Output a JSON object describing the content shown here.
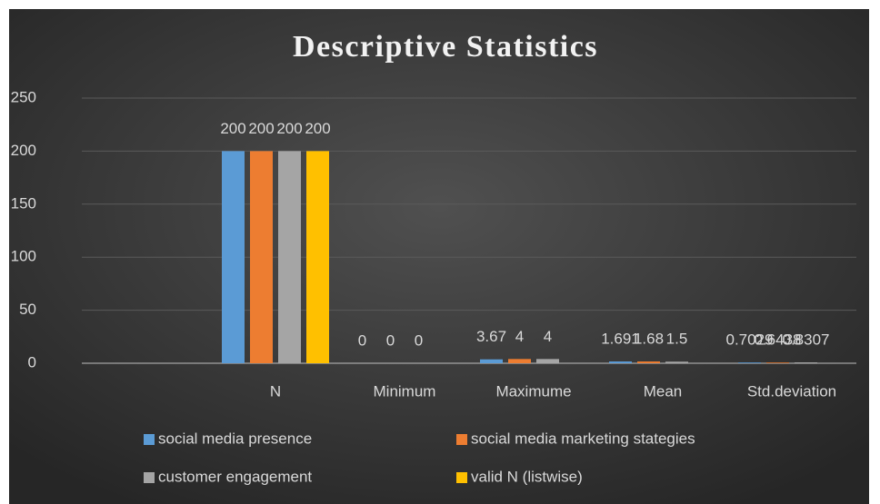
{
  "chart_data": {
    "type": "bar",
    "title": "Descriptive Statistics",
    "categories": [
      null,
      "N",
      "Minimum",
      "Maximume",
      "Mean",
      "Std.deviation"
    ],
    "series": [
      {
        "name": "social media presence",
        "color": "#5b9bd5",
        "values": [
          null,
          200,
          0,
          3.67,
          1.691,
          0.7029
        ]
      },
      {
        "name": "social media marketing stategies",
        "color": "#ed7d31",
        "values": [
          null,
          200,
          0,
          4,
          1.68,
          0.6438
        ]
      },
      {
        "name": "customer engagement",
        "color": "#a5a5a5",
        "values": [
          null,
          200,
          0,
          4,
          1.5,
          0.8307
        ]
      },
      {
        "name": "valid N (listwise)",
        "color": "#ffc000",
        "values": [
          null,
          200,
          null,
          null,
          null,
          null
        ]
      }
    ],
    "ylim": [
      0,
      250
    ],
    "yticks": [
      0,
      50,
      100,
      150,
      200,
      250
    ],
    "grid": true,
    "legend": "bottom",
    "data_labels": true
  }
}
